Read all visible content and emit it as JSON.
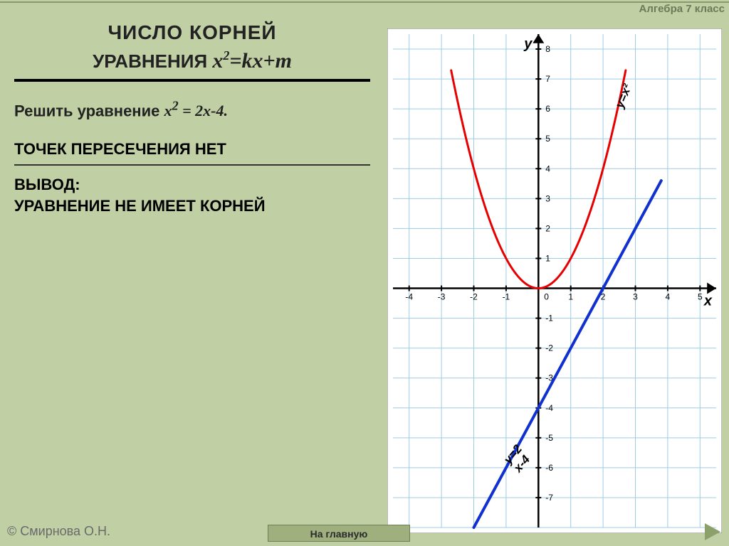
{
  "header": {
    "subject": "Алгебра 7 класс"
  },
  "title": {
    "line1": "ЧИСЛО КОРНЕЙ",
    "line2_prefix": "УРАВНЕНИЯ",
    "equation_html": "x<sup>2</sup>=kx+m"
  },
  "task": {
    "prefix": "Решить уравнение ",
    "equation_html": "x<sup>2</sup> = 2x-4.",
    "no_intersection": "ТОЧЕК ПЕРЕСЕЧЕНИЯ НЕТ",
    "conclusion_head": "ВЫВОД:",
    "conclusion_body": "УРАВНЕНИЕ НЕ ИМЕЕТ КОРНЕЙ"
  },
  "footer": {
    "copyright": "© Смирнова О.Н.",
    "home": "На главную"
  },
  "chart": {
    "type": "line",
    "background_color": "#ffffff",
    "grid_color": "#9ecbe6",
    "axis_color": "#000000",
    "xlim": [
      -4.5,
      5.5
    ],
    "ylim": [
      -8,
      8.5
    ],
    "xtick_step": 1,
    "ytick_step": 1,
    "xticks_labeled": [
      -4,
      -3,
      -2,
      -1,
      0,
      1,
      2,
      3,
      4,
      5
    ],
    "yticks_labeled": [
      -7,
      -6,
      -5,
      -4,
      -3,
      -2,
      -1,
      1,
      2,
      3,
      4,
      5,
      6,
      7,
      8
    ],
    "axis_label_x": "x",
    "axis_label_y": "y",
    "tick_fontsize": 12,
    "axis_label_fontsize": 20,
    "arrow_size": 8,
    "series": [
      {
        "name": "parabola",
        "label": "y=x²",
        "color": "#e60000",
        "width": 3,
        "type": "curve",
        "fn": "x*x",
        "domain": [
          -2.7,
          2.7
        ]
      },
      {
        "name": "line",
        "label": "y=2x-4",
        "color": "#1030d0",
        "width": 4,
        "type": "line",
        "points": [
          [
            -2,
            -8
          ],
          [
            3.8,
            3.6
          ]
        ]
      }
    ],
    "curve_labels": [
      {
        "text": "y=x²",
        "x": 2.6,
        "y": 6.0,
        "angle": -68,
        "color": "#000",
        "fontsize": 17,
        "fontweight": "bold",
        "fontstyle": "italic"
      },
      {
        "text": "y=2x-4",
        "x": -0.9,
        "y": -5.9,
        "angle": -50,
        "color": "#000",
        "fontsize": 17,
        "fontweight": "bold",
        "fontstyle": "italic",
        "two_line": true
      }
    ]
  }
}
